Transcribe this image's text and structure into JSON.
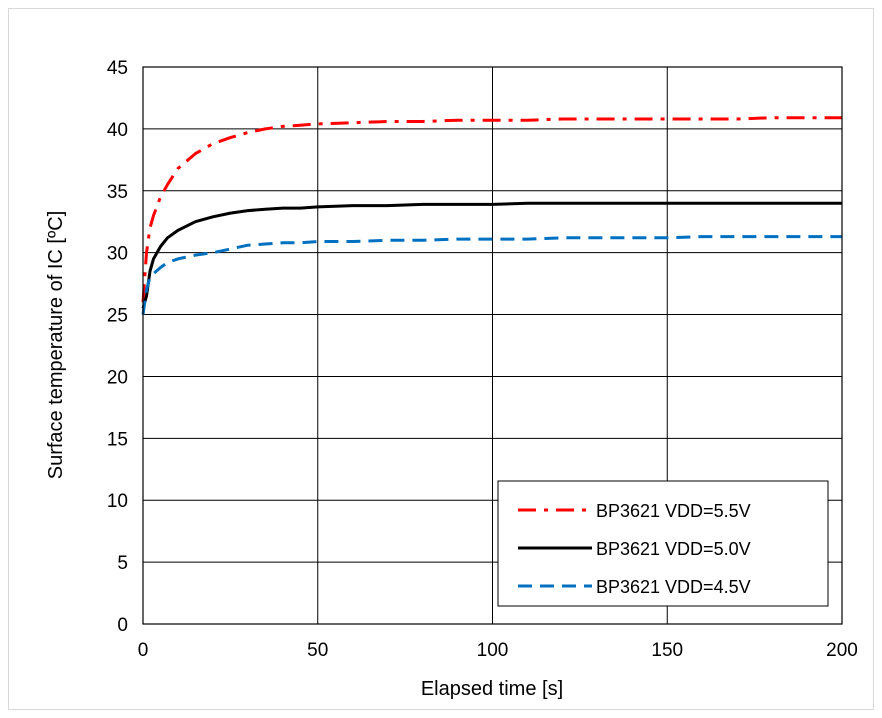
{
  "chart_data": {
    "type": "line",
    "xlabel": "Elapsed time [s]",
    "ylabel": "Surface temperature of IC [ºC]",
    "xlim": [
      0,
      200
    ],
    "ylim": [
      0,
      45
    ],
    "x_ticks": [
      "0",
      "50",
      "100",
      "150",
      "200"
    ],
    "y_ticks": [
      "0",
      "5",
      "10",
      "15",
      "20",
      "25",
      "30",
      "35",
      "40",
      "45"
    ],
    "grid": true,
    "legend_position": "bottom-right",
    "series": [
      {
        "name": "BP3621 VDD=5.5V",
        "color": "#ff0000",
        "style": "dash-dot",
        "x": [
          0,
          1,
          2,
          3,
          5,
          7,
          10,
          15,
          20,
          25,
          30,
          35,
          40,
          45,
          50,
          60,
          70,
          80,
          90,
          100,
          110,
          120,
          130,
          140,
          150,
          160,
          170,
          180,
          190,
          200
        ],
        "y": [
          26.0,
          30.0,
          32.0,
          33.0,
          34.5,
          35.5,
          36.8,
          38.0,
          38.8,
          39.3,
          39.7,
          40.0,
          40.2,
          40.3,
          40.4,
          40.5,
          40.6,
          40.6,
          40.7,
          40.7,
          40.7,
          40.8,
          40.8,
          40.8,
          40.8,
          40.8,
          40.8,
          40.9,
          40.9,
          40.9
        ]
      },
      {
        "name": "BP3621 VDD=5.0V",
        "color": "#000000",
        "style": "solid",
        "x": [
          0,
          1,
          2,
          3,
          5,
          7,
          10,
          15,
          20,
          25,
          30,
          35,
          40,
          45,
          50,
          60,
          70,
          80,
          90,
          100,
          110,
          120,
          130,
          140,
          150,
          160,
          170,
          180,
          190,
          200
        ],
        "y": [
          25.5,
          26.5,
          28.5,
          29.5,
          30.5,
          31.2,
          31.8,
          32.5,
          32.9,
          33.2,
          33.4,
          33.5,
          33.6,
          33.6,
          33.7,
          33.8,
          33.8,
          33.9,
          33.9,
          33.9,
          34.0,
          34.0,
          34.0,
          34.0,
          34.0,
          34.0,
          34.0,
          34.0,
          34.0,
          34.0
        ]
      },
      {
        "name": "BP3621 VDD=4.5V",
        "color": "#0070c0",
        "style": "dashed",
        "x": [
          0,
          1,
          2,
          3,
          5,
          7,
          10,
          15,
          20,
          25,
          30,
          35,
          40,
          45,
          50,
          60,
          70,
          80,
          90,
          100,
          110,
          120,
          130,
          140,
          150,
          160,
          170,
          180,
          190,
          200
        ],
        "y": [
          25.0,
          27.0,
          28.0,
          28.3,
          28.8,
          29.2,
          29.5,
          29.8,
          30.0,
          30.3,
          30.6,
          30.7,
          30.8,
          30.8,
          30.9,
          30.9,
          31.0,
          31.0,
          31.1,
          31.1,
          31.1,
          31.2,
          31.2,
          31.2,
          31.2,
          31.3,
          31.3,
          31.3,
          31.3,
          31.3
        ]
      }
    ]
  }
}
